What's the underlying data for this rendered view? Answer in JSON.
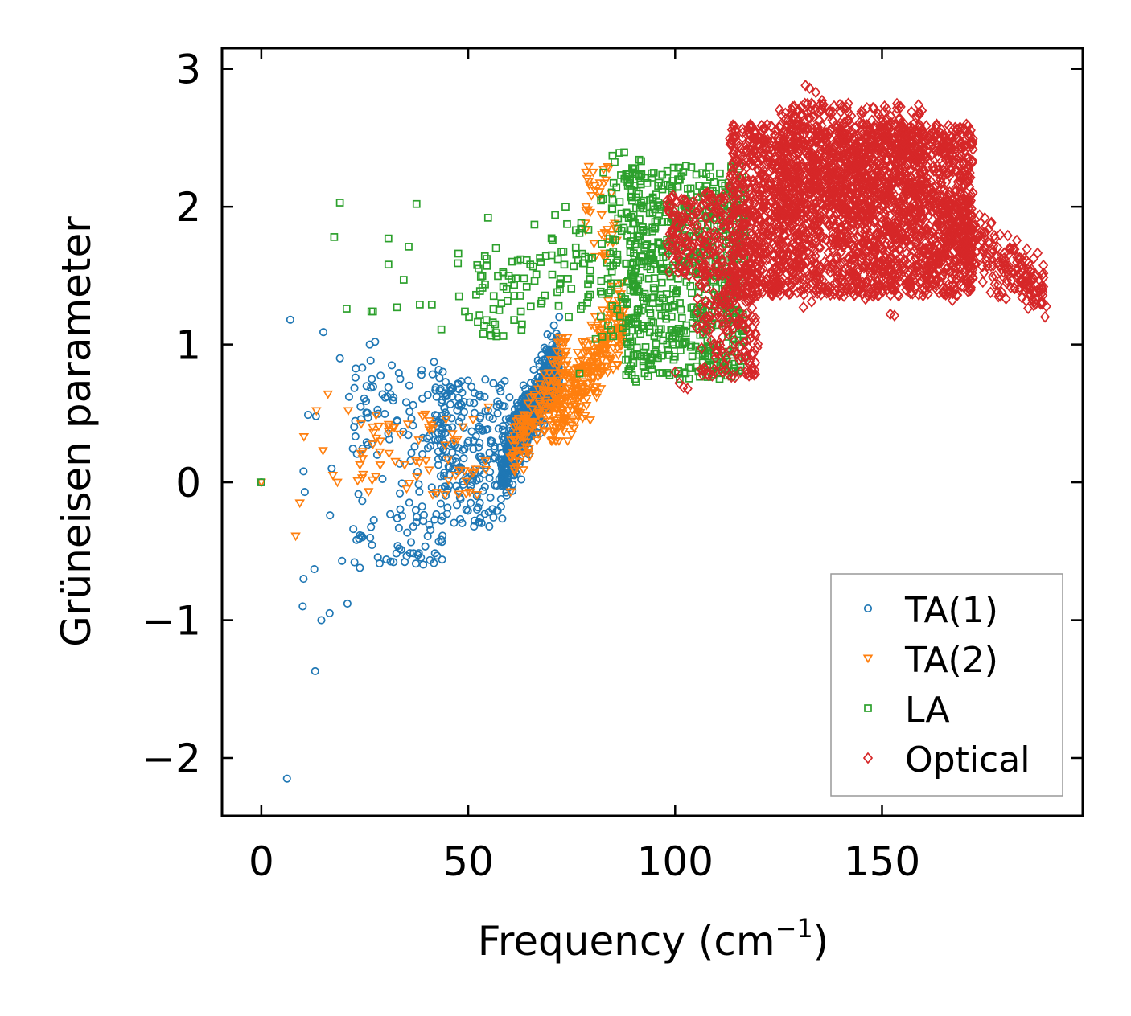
{
  "chart_data": {
    "type": "scatter",
    "title": "",
    "xlabel": "Frequency (cm",
    "xlabel_sup": "−1",
    "xlabel_close": ")",
    "ylabel": "Grüneisen parameter",
    "xlim": [
      -9.5,
      198.5
    ],
    "ylim": [
      -2.42,
      3.15
    ],
    "xticks": [
      0,
      50,
      100,
      150
    ],
    "xtick_labels": [
      "0",
      "50",
      "100",
      "150"
    ],
    "yticks": [
      -2,
      -1,
      0,
      1,
      2,
      3
    ],
    "ytick_labels": [
      "−2",
      "−1",
      "0",
      "1",
      "2",
      "3"
    ],
    "legend_position": "lower-right",
    "series": [
      {
        "name": "TA(1)",
        "marker": "circle",
        "color": "#1f77b4",
        "clusters": [
          {
            "x": [
              58,
              72
            ],
            "y": [
              0.0,
              1.05
            ],
            "n": 550,
            "kind": "ribbon",
            "slope": 0.06,
            "intercept": -3.4,
            "spread": 0.38
          },
          {
            "x": [
              42,
              60
            ],
            "y": [
              -0.3,
              0.75
            ],
            "n": 220,
            "kind": "box"
          },
          {
            "x": [
              22,
              45
            ],
            "y": [
              -0.6,
              0.9
            ],
            "n": 140,
            "kind": "box"
          }
        ],
        "points": [
          {
            "x": 0,
            "y": 0
          },
          {
            "x": 6.2,
            "y": -2.15
          },
          {
            "x": 7,
            "y": 1.18
          },
          {
            "x": 15,
            "y": 1.09
          },
          {
            "x": 19,
            "y": 0.9
          },
          {
            "x": 13,
            "y": -1.37
          },
          {
            "x": 14.5,
            "y": -1.0
          },
          {
            "x": 16.5,
            "y": -0.95
          },
          {
            "x": 10,
            "y": -0.9
          },
          {
            "x": 20.8,
            "y": -0.88
          },
          {
            "x": 10.2,
            "y": -0.7
          },
          {
            "x": 12.8,
            "y": -0.63
          },
          {
            "x": 13.2,
            "y": 0.48
          },
          {
            "x": 11.3,
            "y": 0.49
          },
          {
            "x": 10.2,
            "y": 0.08
          },
          {
            "x": 10.5,
            "y": -0.07
          },
          {
            "x": 19.5,
            "y": -0.57
          },
          {
            "x": 22.5,
            "y": -0.58
          },
          {
            "x": 23.8,
            "y": -0.62
          },
          {
            "x": 30.2,
            "y": -0.56
          },
          {
            "x": 33.3,
            "y": -0.48
          },
          {
            "x": 26.2,
            "y": 1.0
          },
          {
            "x": 27.5,
            "y": 1.02
          },
          {
            "x": 38.7,
            "y": 0.78
          },
          {
            "x": 16.6,
            "y": -0.24
          },
          {
            "x": 21.2,
            "y": 0.62
          },
          {
            "x": 26.7,
            "y": 0.75
          },
          {
            "x": 40.2,
            "y": -0.39
          },
          {
            "x": 51.4,
            "y": -0.32
          },
          {
            "x": 55.1,
            "y": -0.32
          },
          {
            "x": 17.0,
            "y": 0.1
          },
          {
            "x": 28.0,
            "y": 0.2
          }
        ]
      },
      {
        "name": "TA(2)",
        "marker": "triangle-down",
        "color": "#ff7f0e",
        "clusters": [
          {
            "x": [
              70,
              88
            ],
            "y": [
              0.45,
              1.65
            ],
            "n": 300,
            "kind": "ribbon",
            "slope": 0.045,
            "intercept": -2.75,
            "spread": 0.42
          },
          {
            "x": [
              60,
              74
            ],
            "y": [
              0.0,
              0.9
            ],
            "n": 140,
            "kind": "ribbon",
            "slope": 0.055,
            "intercept": -3.15,
            "spread": 0.35
          },
          {
            "x": [
              78,
              86
            ],
            "y": [
              1.6,
              2.3
            ],
            "n": 40,
            "kind": "box"
          },
          {
            "x": [
              22,
              55
            ],
            "y": [
              -0.1,
              0.55
            ],
            "n": 70,
            "kind": "box"
          }
        ],
        "points": [
          {
            "x": 0,
            "y": 0
          },
          {
            "x": 8.3,
            "y": -0.39
          },
          {
            "x": 9.3,
            "y": -0.15
          },
          {
            "x": 10.3,
            "y": 0.33
          },
          {
            "x": 13.3,
            "y": 0.52
          },
          {
            "x": 16.1,
            "y": 0.64
          },
          {
            "x": 17.3,
            "y": 0.05
          },
          {
            "x": 14.9,
            "y": 0.23
          },
          {
            "x": 18.4,
            "y": 0.0
          },
          {
            "x": 21.0,
            "y": 0.52
          },
          {
            "x": 27.1,
            "y": 0.36
          },
          {
            "x": 78.6,
            "y": 0.83
          },
          {
            "x": 81.0,
            "y": 0.65
          },
          {
            "x": 80.2,
            "y": 2.25
          },
          {
            "x": 84.0,
            "y": 2.28
          }
        ]
      },
      {
        "name": "LA",
        "marker": "square",
        "color": "#2ca02c",
        "clusters": [
          {
            "x": [
              88,
              117
            ],
            "y": [
              0.75,
              2.3
            ],
            "n": 650,
            "kind": "box"
          },
          {
            "x": [
              82,
              92
            ],
            "y": [
              1.0,
              2.4
            ],
            "n": 90,
            "kind": "box"
          },
          {
            "x": [
              50,
              72
            ],
            "y": [
              1.05,
              1.65
            ],
            "n": 60,
            "kind": "box"
          },
          {
            "x": [
              70,
              80
            ],
            "y": [
              1.2,
              1.9
            ],
            "n": 40,
            "kind": "box"
          }
        ],
        "points": [
          {
            "x": 0,
            "y": 0
          },
          {
            "x": 19.0,
            "y": 2.03
          },
          {
            "x": 17.6,
            "y": 1.78
          },
          {
            "x": 37.5,
            "y": 2.02
          },
          {
            "x": 20.6,
            "y": 1.26
          },
          {
            "x": 26.6,
            "y": 1.24
          },
          {
            "x": 27.0,
            "y": 1.24
          },
          {
            "x": 30.7,
            "y": 1.77
          },
          {
            "x": 34.4,
            "y": 1.47
          },
          {
            "x": 32.8,
            "y": 1.27
          },
          {
            "x": 30.7,
            "y": 1.58
          },
          {
            "x": 35.6,
            "y": 1.71
          },
          {
            "x": 38.3,
            "y": 1.29
          },
          {
            "x": 41.2,
            "y": 1.29
          },
          {
            "x": 43.5,
            "y": 1.11
          },
          {
            "x": 47.5,
            "y": 1.59
          },
          {
            "x": 47.6,
            "y": 1.66
          },
          {
            "x": 47.8,
            "y": 1.35
          },
          {
            "x": 54.8,
            "y": 1.92
          },
          {
            "x": 56.7,
            "y": 1.7
          },
          {
            "x": 52.5,
            "y": 1.55
          },
          {
            "x": 58.0,
            "y": 1.3
          },
          {
            "x": 49.2,
            "y": 1.24
          },
          {
            "x": 66.0,
            "y": 1.87
          },
          {
            "x": 71.0,
            "y": 1.94
          },
          {
            "x": 76.0,
            "y": 1.83
          },
          {
            "x": 73.5,
            "y": 2.0
          },
          {
            "x": 76.9,
            "y": 0.79
          },
          {
            "x": 80.8,
            "y": 1.04
          },
          {
            "x": 90.6,
            "y": 0.73
          }
        ]
      },
      {
        "name": "Optical",
        "marker": "diamond",
        "color": "#d62728",
        "clusters": [
          {
            "x": [
              113,
              172
            ],
            "y": [
              1.35,
              2.6
            ],
            "n": 2500,
            "kind": "box"
          },
          {
            "x": [
              125,
              160
            ],
            "y": [
              1.9,
              2.75
            ],
            "n": 500,
            "kind": "box"
          },
          {
            "x": [
              165,
              190
            ],
            "y": [
              1.35,
              1.9
            ],
            "n": 250,
            "kind": "ribbon",
            "slope": -0.022,
            "intercept": 5.55,
            "spread": 0.35
          },
          {
            "x": [
              105,
              120
            ],
            "y": [
              0.75,
              1.6
            ],
            "n": 200,
            "kind": "box"
          },
          {
            "x": [
              98,
              112
            ],
            "y": [
              1.5,
              2.1
            ],
            "n": 180,
            "kind": "box"
          }
        ],
        "points": [
          {
            "x": 131.5,
            "y": 2.88
          },
          {
            "x": 132.5,
            "y": 2.86
          },
          {
            "x": 134,
            "y": 2.83
          },
          {
            "x": 133,
            "y": 2.75
          },
          {
            "x": 132,
            "y": 2.68
          },
          {
            "x": 135.5,
            "y": 2.77
          },
          {
            "x": 141.5,
            "y": 2.72
          },
          {
            "x": 145.5,
            "y": 2.6
          },
          {
            "x": 126,
            "y": 2.29
          },
          {
            "x": 100,
            "y": 0.8
          },
          {
            "x": 101,
            "y": 0.72
          },
          {
            "x": 102,
            "y": 0.69
          },
          {
            "x": 103,
            "y": 0.68
          },
          {
            "x": 117,
            "y": 0.95
          },
          {
            "x": 118,
            "y": 0.88
          },
          {
            "x": 119.5,
            "y": 1.07
          },
          {
            "x": 131,
            "y": 1.27
          },
          {
            "x": 133,
            "y": 1.31
          },
          {
            "x": 146,
            "y": 1.33
          },
          {
            "x": 152,
            "y": 1.22
          },
          {
            "x": 153,
            "y": 1.21
          },
          {
            "x": 167,
            "y": 1.32
          },
          {
            "x": 186,
            "y": 1.42
          },
          {
            "x": 188,
            "y": 1.41
          },
          {
            "x": 189,
            "y": 1.42
          },
          {
            "x": 184,
            "y": 1.47
          },
          {
            "x": 178,
            "y": 1.38
          }
        ]
      }
    ]
  }
}
